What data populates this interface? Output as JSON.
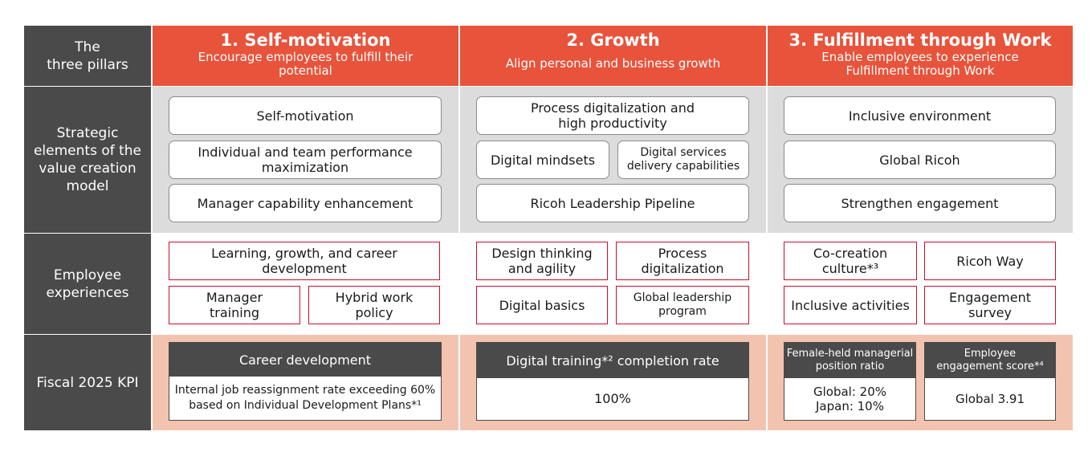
{
  "row_headers": {
    "pillars": "The\nthree pillars",
    "strategic": "Strategic\nelements of the\nvalue creation\nmodel",
    "experiences": "Employee\nexperiences",
    "kpi": "Fiscal 2025 KPI"
  },
  "pillars": [
    {
      "title": "1. Self-motivation",
      "subtitle": "Encourage employees to fulfill their\npotential"
    },
    {
      "title": "2. Growth",
      "subtitle": "Align personal and business growth"
    },
    {
      "title": "3. Fulfillment through Work",
      "subtitle": "Enable employees to experience\nFulfillment through Work"
    }
  ],
  "strategic": {
    "col1": [
      "Self-motivation",
      "Individual and team performance\nmaximization",
      "Manager capability enhancement"
    ],
    "col2": [
      "Process digitalization and\nhigh productivity",
      "Digital mindsets",
      "Digital services\ndelivery capabilities",
      "Ricoh Leadership Pipeline"
    ],
    "col3": [
      "Inclusive environment",
      "Global Ricoh",
      "Strengthen engagement"
    ]
  },
  "experiences": {
    "col1": [
      "Learning, growth, and career\ndevelopment",
      "Manager\ntraining",
      "Hybrid work\npolicy"
    ],
    "col2": [
      "Design thinking\nand agility",
      "Process\ndigitalization",
      "Digital basics",
      "Global leadership\nprogram"
    ],
    "col3": [
      "Co-creation\nculture*³",
      "Ricoh Way",
      "Inclusive activities",
      "Engagement\nsurvey"
    ]
  },
  "kpi": {
    "career_header": "Career development",
    "career_value": "Internal job reassignment rate exceeding 60%\nbased on Individual Development Plans*¹",
    "digital_header": "Digital training*² completion rate",
    "digital_value": "100%",
    "female_header": "Female-held managerial\nposition ratio",
    "female_value": "Global: 20%\nJapan: 10%",
    "engagement_header": "Employee\nengagement score*⁴",
    "engagement_value": "Global 3.91"
  },
  "colors": {
    "pillar_bg": "#e8533b",
    "row_header_bg": "#4a4a4a",
    "strategic_bg": "#dcdcdc",
    "kpi_bg": "#f2c4b0",
    "experience_border": "#c8102e"
  }
}
